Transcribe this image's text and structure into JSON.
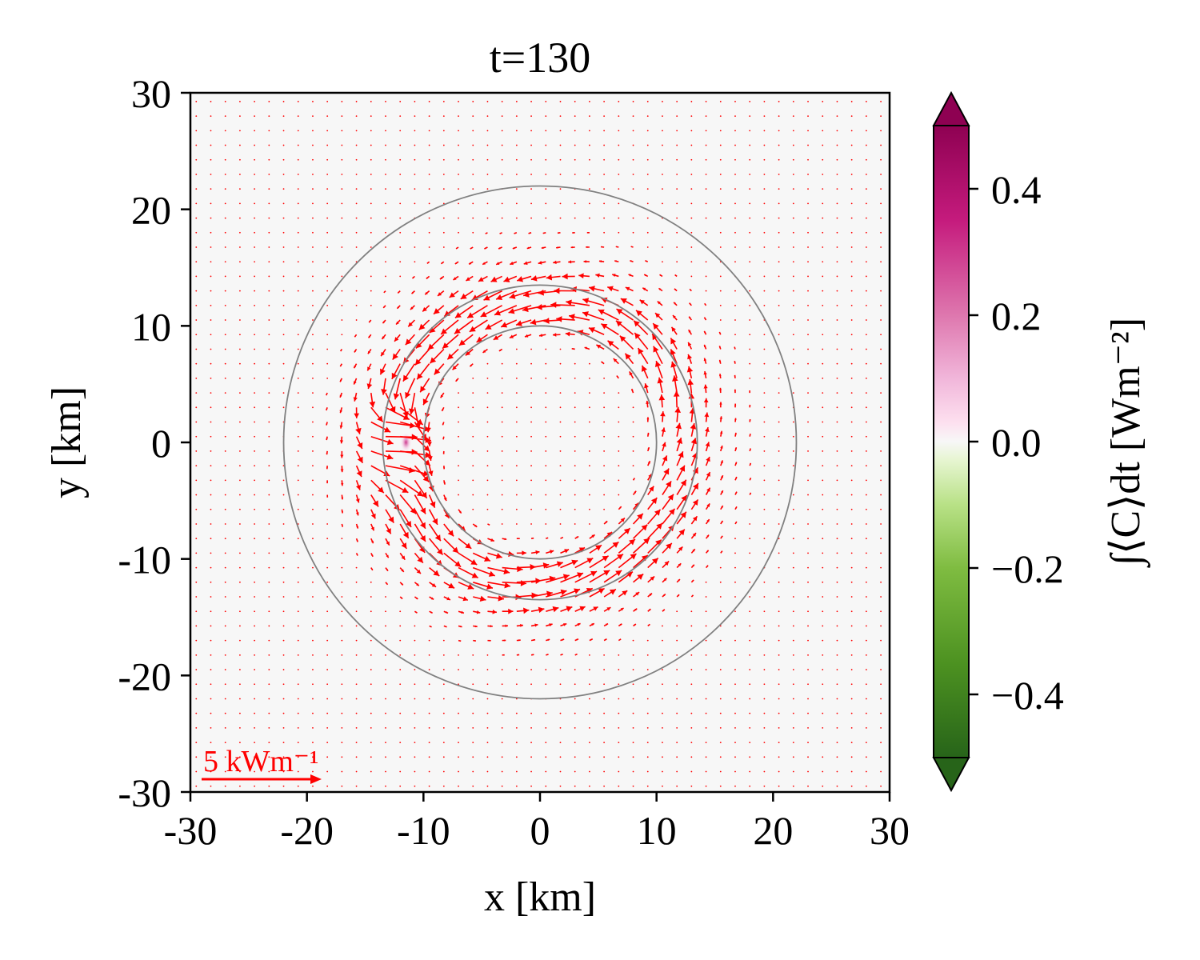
{
  "chart_data": {
    "type": "heatmap",
    "title": "t=130",
    "xlabel": "x [km]",
    "ylabel": "y [km]",
    "xlim": [
      -30,
      30
    ],
    "ylim": [
      -30,
      30
    ],
    "x_ticks": [
      "-30",
      "-20",
      "-10",
      "0",
      "10",
      "20",
      "30"
    ],
    "y_ticks": [
      "-30",
      "-20",
      "-10",
      "0",
      "10",
      "20",
      "30"
    ],
    "x_tick_values": [
      -30,
      -20,
      -10,
      0,
      10,
      20,
      30
    ],
    "y_tick_values": [
      -30,
      -20,
      -10,
      0,
      10,
      20,
      30
    ],
    "contour_radii_km": [
      10,
      13.5,
      22
    ],
    "colorbar": {
      "label": "∫⟨C⟩dt [Wm⁻²]",
      "range": [
        -0.5,
        0.5
      ],
      "tick_values": [
        0.4,
        0.2,
        0.0,
        -0.2,
        -0.4
      ],
      "tick_labels": [
        "0.4",
        "0.2",
        "0.0",
        "−0.2",
        "−0.4"
      ],
      "colormap": "PiYG_r",
      "extend": "both"
    },
    "hotspot": {
      "x": -11.5,
      "y": 0,
      "value": 0.25
    },
    "quiver_key": {
      "label": "5 kWm⁻¹",
      "magnitude_kw_per_m": 5
    },
    "colors": {
      "arrows": "#ff0000",
      "contours": "#808080",
      "background": "#f7f7f7"
    }
  }
}
